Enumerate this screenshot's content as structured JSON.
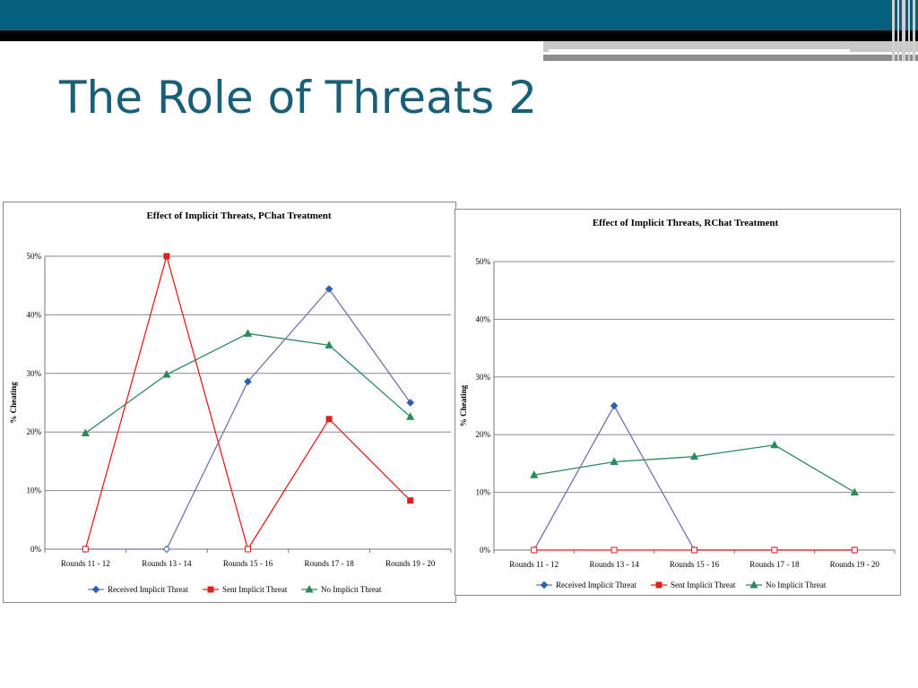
{
  "slide": {
    "title": "The Role of Threats 2"
  },
  "colors": {
    "header": "#05607d",
    "title": "#1a5f78",
    "received": "#7b6fad",
    "received_marker": "#2f5fb0",
    "sent": "#e02020",
    "no_threat": "#2a8a5c"
  },
  "chart_data": [
    {
      "type": "line",
      "title": "Effect of Implicit Threats, PChat Treatment",
      "xlabel": "",
      "ylabel": "% Cheating",
      "ylim": [
        0,
        50
      ],
      "yticks": [
        "0%",
        "10%",
        "20%",
        "30%",
        "40%",
        "50%"
      ],
      "categories": [
        "Rounds 11 - 12",
        "Rounds 13 - 14",
        "Rounds 15 - 16",
        "Rounds 17 - 18",
        "Rounds 19 - 20"
      ],
      "series": [
        {
          "name": "Received Implicit Threat",
          "values": [
            0,
            0,
            28.6,
            44.4,
            25
          ]
        },
        {
          "name": "Sent Implicit Threat",
          "values": [
            0,
            50,
            0,
            22.2,
            8.3
          ]
        },
        {
          "name": "No Implicit Threat",
          "values": [
            19.8,
            29.8,
            36.8,
            34.8,
            22.6
          ]
        }
      ],
      "grid": true,
      "legend": "bottom"
    },
    {
      "type": "line",
      "title": "Effect of Implicit Threats, RChat Treatment",
      "xlabel": "",
      "ylabel": "% Cheating",
      "ylim": [
        0,
        50
      ],
      "yticks": [
        "0%",
        "10%",
        "20%",
        "30%",
        "40%",
        "50%"
      ],
      "categories": [
        "Rounds 11 - 12",
        "Rounds 13 - 14",
        "Rounds 15 - 16",
        "Rounds 17 - 18",
        "Rounds 19 - 20"
      ],
      "series": [
        {
          "name": "Received Implicit Threat",
          "values": [
            0,
            25,
            0,
            0,
            0
          ]
        },
        {
          "name": "Sent Implicit Threat",
          "values": [
            0,
            0,
            0,
            0,
            0
          ]
        },
        {
          "name": "No Implicit Threat",
          "values": [
            13,
            15.3,
            16.2,
            18.2,
            10
          ]
        }
      ],
      "grid": true,
      "legend": "bottom"
    }
  ]
}
